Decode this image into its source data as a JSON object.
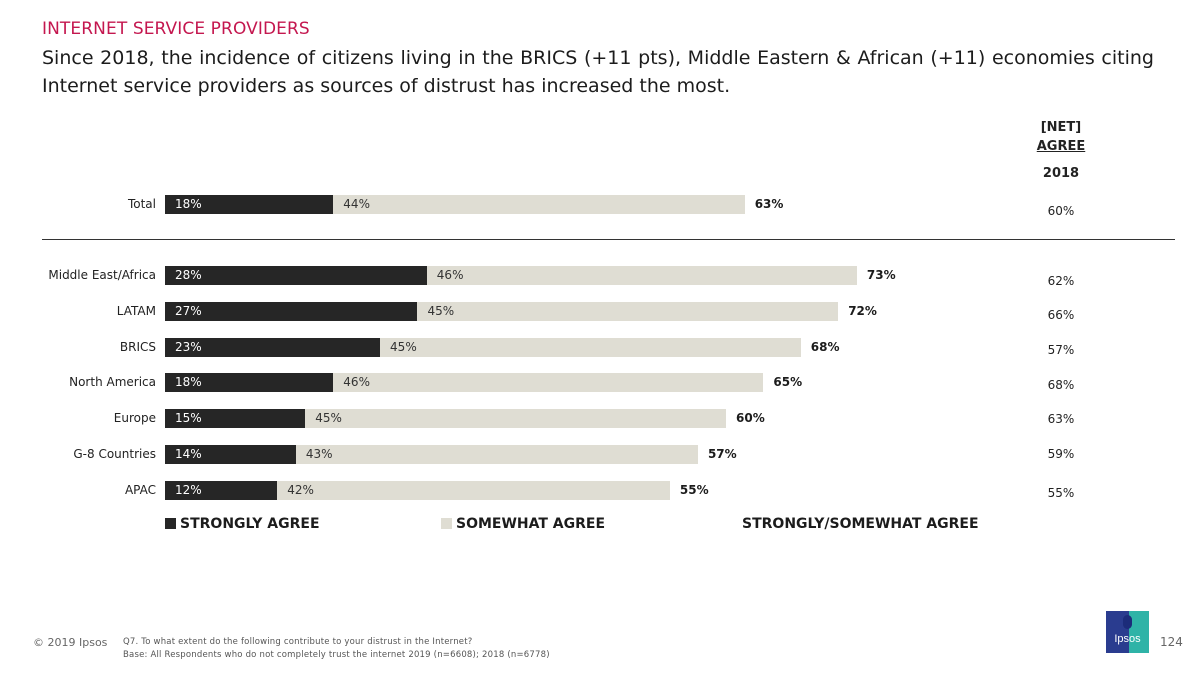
{
  "header": {
    "section_title": "INTERNET SERVICE PROVIDERS",
    "headline": "Since 2018, the incidence of citizens living in the BRICS (+11 pts), Middle Eastern & African (+11) economies citing Internet service providers as sources of distrust has increased the most."
  },
  "net_column": {
    "line1": "[NET]",
    "line2": "AGREE",
    "year": "2018"
  },
  "chart_data": {
    "type": "bar",
    "orientation": "horizontal",
    "stacked": true,
    "title": "",
    "xlim": [
      0,
      100
    ],
    "categories": [
      "Total",
      "Middle East/Africa",
      "LATAM",
      "BRICS",
      "North America",
      "Europe",
      "G-8 Countries",
      "APAC"
    ],
    "series": [
      {
        "name": "STRONGLY AGREE",
        "values": [
          18,
          28,
          27,
          23,
          18,
          15,
          14,
          12
        ],
        "labels": [
          "18%",
          "28%",
          "27%",
          "23%",
          "18%",
          "15%",
          "14%",
          "12%"
        ],
        "color": "#262626"
      },
      {
        "name": "SOMEWHAT AGREE",
        "values": [
          44,
          46,
          45,
          45,
          46,
          45,
          43,
          42
        ],
        "labels": [
          "44%",
          "46%",
          "45%",
          "45%",
          "46%",
          "45%",
          "43%",
          "42%"
        ],
        "color": "#dfddd3"
      }
    ],
    "net": {
      "name": "STRONGLY/SOMEWHAT AGREE",
      "values": [
        63,
        73,
        72,
        68,
        65,
        60,
        57,
        55
      ],
      "labels": [
        "63%",
        "73%",
        "72%",
        "68%",
        "65%",
        "60%",
        "57%",
        "55%"
      ]
    },
    "net_2018": {
      "values": [
        60,
        62,
        66,
        57,
        68,
        63,
        59,
        55
      ],
      "labels": [
        "60%",
        "62%",
        "66%",
        "57%",
        "68%",
        "63%",
        "59%",
        "55%"
      ]
    },
    "legend": [
      "STRONGLY AGREE",
      "SOMEWHAT AGREE",
      "STRONGLY/SOMEWHAT AGREE"
    ],
    "legend_position": "bottom"
  },
  "footer": {
    "copyright": "© 2019 Ipsos",
    "question": "Q7.  To what extent do the following contribute to your distrust in the Internet?",
    "base": "Base: All Respondents who do not completely trust the internet 2019 (n=6608); 2018 (n=6778)",
    "logo_text": "Ipsos",
    "page_number": "124"
  },
  "colors": {
    "accent": "#c4174f",
    "strongly": "#262626",
    "somewhat": "#dfddd3"
  }
}
